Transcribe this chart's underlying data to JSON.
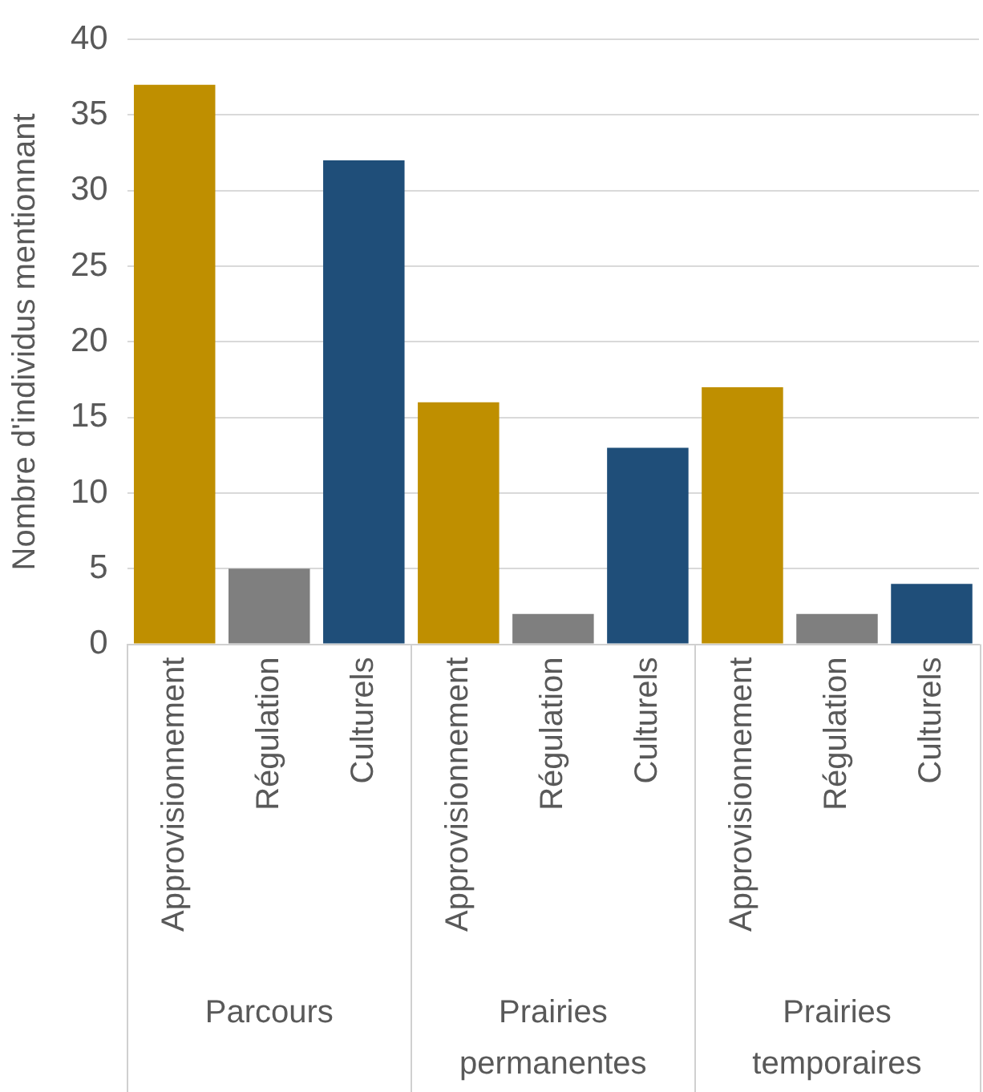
{
  "chart_data": {
    "type": "bar",
    "ylabel": "Nombre d'individus mentionnant",
    "categories": [
      "Approvisionnement",
      "Régulation",
      "Culturels",
      "Approvisionnement",
      "Régulation",
      "Culturels",
      "Approvisionnement",
      "Régulation",
      "Culturels"
    ],
    "values": [
      37,
      5,
      32,
      16,
      2,
      13,
      17,
      2,
      4
    ],
    "colors": [
      "#bf8f00",
      "#7f7f7f",
      "#1f4e79",
      "#bf8f00",
      "#7f7f7f",
      "#1f4e79",
      "#bf8f00",
      "#7f7f7f",
      "#1f4e79"
    ],
    "ylim": [
      0,
      40
    ],
    "yticks": [
      0,
      5,
      10,
      15,
      20,
      25,
      30,
      35,
      40
    ],
    "grid": "y",
    "legend": false,
    "annotations": [
      "Parcours",
      "Prairies\npermanentes",
      "Prairies\ntemporaires"
    ]
  }
}
